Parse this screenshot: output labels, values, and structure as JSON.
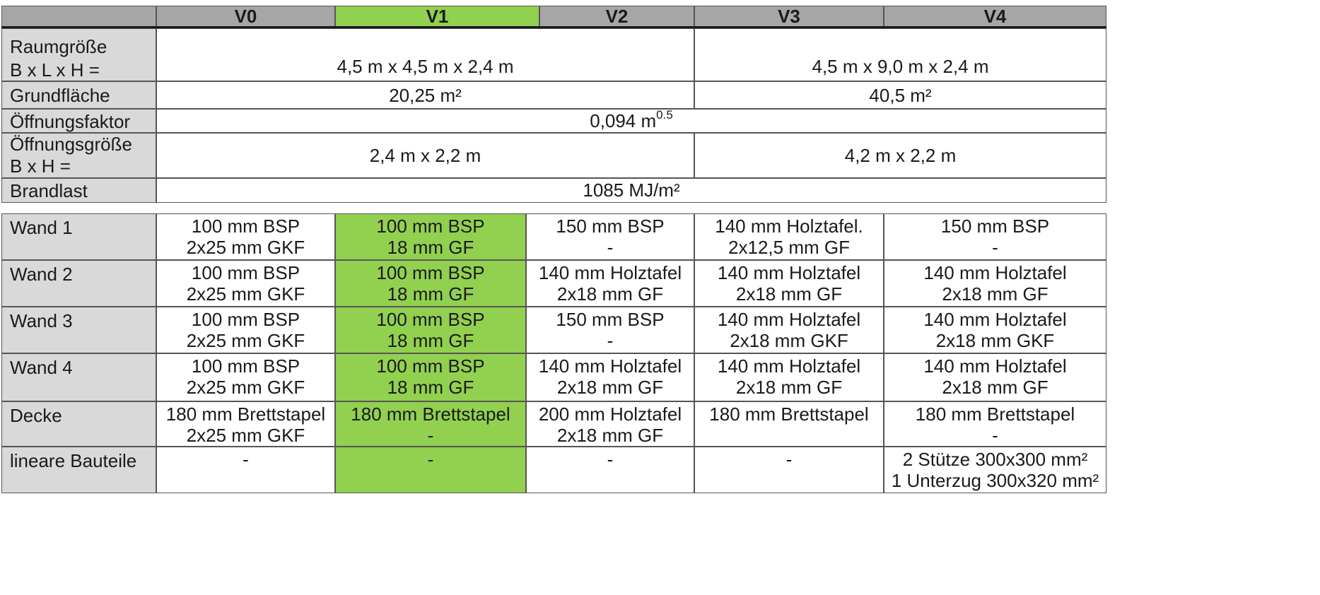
{
  "header": {
    "columns": [
      "V0",
      "V1",
      "V2",
      "V3",
      "V4"
    ]
  },
  "room": {
    "rows": [
      {
        "label": [
          "Raumgröße",
          "B x L x H ="
        ],
        "left": "4,5 m x 4,5 m x 2,4 m",
        "right": "4,5 m x 9,0 m x 2,4 m"
      },
      {
        "label": [
          "Grundfläche"
        ],
        "left": "20,25 m²",
        "right": "40,5 m²"
      },
      {
        "label": [
          "Öffnungsfaktor"
        ],
        "all_base": "0,094 m",
        "all_exp": "0.5"
      },
      {
        "label": [
          "Öffnungsgröße",
          "B x H ="
        ],
        "left": "2,4 m x 2,2 m",
        "right": "4,2 m x 2,2 m"
      },
      {
        "label": [
          "Brandlast"
        ],
        "all": "1085 MJ/m²"
      }
    ]
  },
  "components": {
    "rows": [
      {
        "label": "Wand 1",
        "cells": [
          [
            "100 mm BSP",
            "2x25 mm GKF"
          ],
          [
            "100 mm BSP",
            "18 mm GF"
          ],
          [
            "150 mm BSP",
            "-"
          ],
          [
            "140 mm Holztafel.",
            "2x12,5 mm GF"
          ],
          [
            "150 mm BSP",
            "-"
          ]
        ]
      },
      {
        "label": "Wand 2",
        "cells": [
          [
            "100 mm BSP",
            "2x25 mm GKF"
          ],
          [
            "100 mm BSP",
            "18 mm GF"
          ],
          [
            "140 mm Holztafel",
            "2x18 mm GF"
          ],
          [
            "140 mm Holztafel",
            "2x18 mm GF"
          ],
          [
            "140 mm Holztafel",
            "2x18 mm GF"
          ]
        ]
      },
      {
        "label": "Wand 3",
        "cells": [
          [
            "100 mm BSP",
            "2x25 mm GKF"
          ],
          [
            "100 mm BSP",
            "18 mm GF"
          ],
          [
            "150 mm BSP",
            "-"
          ],
          [
            "140 mm Holztafel",
            "2x18 mm GKF"
          ],
          [
            "140 mm Holztafel",
            "2x18 mm GKF"
          ]
        ]
      },
      {
        "label": "Wand 4",
        "cells": [
          [
            "100 mm BSP",
            "2x25 mm GKF"
          ],
          [
            "100 mm BSP",
            "18 mm GF"
          ],
          [
            "140 mm Holztafel",
            "2x18 mm GF"
          ],
          [
            "140 mm Holztafel",
            "2x18 mm GF"
          ],
          [
            "140 mm Holztafel",
            "2x18 mm GF"
          ]
        ]
      },
      {
        "label": "Decke",
        "cells": [
          [
            "180 mm Brettstapel",
            "2x25 mm GKF"
          ],
          [
            "180 mm Brettstapel",
            "-"
          ],
          [
            "200 mm Holztafel",
            "2x18 mm GF"
          ],
          [
            "180 mm Brettstapel",
            ""
          ],
          [
            "180 mm Brettstapel",
            "-"
          ]
        ]
      },
      {
        "label": "lineare Bauteile",
        "cells": [
          [
            "-",
            ""
          ],
          [
            "-",
            ""
          ],
          [
            "-",
            ""
          ],
          [
            "-",
            ""
          ],
          [
            "2 Stütze 300x300 mm²",
            "1 Unterzug 300x320 mm²"
          ]
        ]
      }
    ]
  },
  "colors": {
    "highlight": "#92d050",
    "header_bg": "#a6a6a6",
    "label_bg": "#d9d9d9"
  }
}
